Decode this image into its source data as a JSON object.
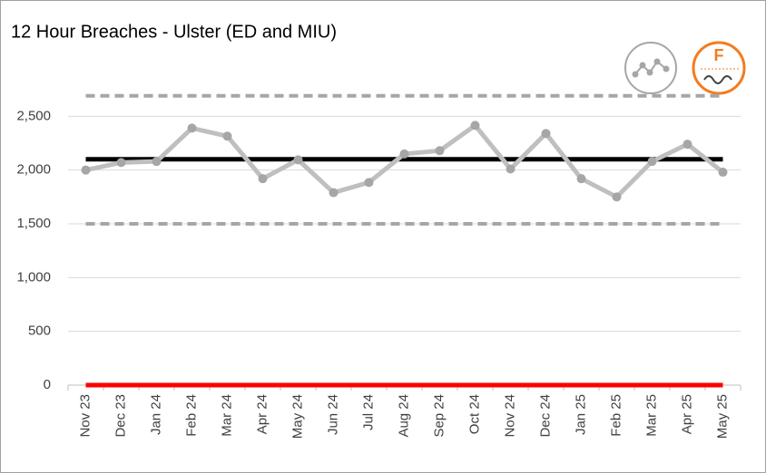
{
  "chart_data": {
    "type": "line",
    "title": "12 Hour Breaches - Ulster (ED and MIU)",
    "icon_label": "F",
    "categories": [
      "Nov 23",
      "Dec 23",
      "Jan 24",
      "Feb 24",
      "Mar 24",
      "Apr 24",
      "May 24",
      "Jun 24",
      "Jul 24",
      "Aug 24",
      "Sep 24",
      "Oct 24",
      "Nov 24",
      "Dec 24",
      "Jan 25",
      "Feb 25",
      "Mar 25",
      "Apr 25",
      "May 25"
    ],
    "series": [
      {
        "color": "#a6a6a6",
        "dashed": true,
        "markers": false,
        "width": 4,
        "values": [
          2690,
          2690,
          2690,
          2690,
          2690,
          2690,
          2690,
          2690,
          2690,
          2690,
          2690,
          2690,
          2690,
          2690,
          2690,
          2690,
          2690,
          2690,
          2690
        ]
      },
      {
        "color": "#a6a6a6",
        "dashed": true,
        "markers": false,
        "width": 4,
        "values": [
          1500,
          1500,
          1500,
          1500,
          1500,
          1500,
          1500,
          1500,
          1500,
          1500,
          1500,
          1500,
          1500,
          1500,
          1500,
          1500,
          1500,
          1500,
          1500
        ]
      },
      {
        "color": "#000000",
        "dashed": false,
        "markers": false,
        "width": 5,
        "values": [
          2100,
          2100,
          2100,
          2100,
          2100,
          2100,
          2100,
          2100,
          2100,
          2100,
          2100,
          2100,
          2100,
          2100,
          2100,
          2100,
          2100,
          2100,
          2100
        ]
      },
      {
        "color": "#ff0000",
        "dashed": false,
        "markers": false,
        "width": 5,
        "values": [
          0,
          0,
          0,
          0,
          0,
          0,
          0,
          0,
          0,
          0,
          0,
          0,
          0,
          0,
          0,
          0,
          0,
          0,
          0
        ]
      },
      {
        "color": "#bfbfbf",
        "dashed": false,
        "markers": true,
        "width": 5,
        "values": [
          2000,
          2070,
          2080,
          2390,
          2315,
          1920,
          2095,
          1790,
          1885,
          2150,
          2180,
          2415,
          2010,
          2340,
          1920,
          1750,
          2080,
          2240,
          1980
        ]
      }
    ],
    "ylim": [
      0,
      3000
    ],
    "yticks": [
      0,
      500,
      {
        "value": 1000,
        "label": "1,000"
      },
      {
        "value": 1500,
        "label": "1,500"
      },
      {
        "value": 2000,
        "label": "2,000"
      },
      {
        "value": 2500,
        "label": "2,500"
      }
    ],
    "grid": true
  }
}
